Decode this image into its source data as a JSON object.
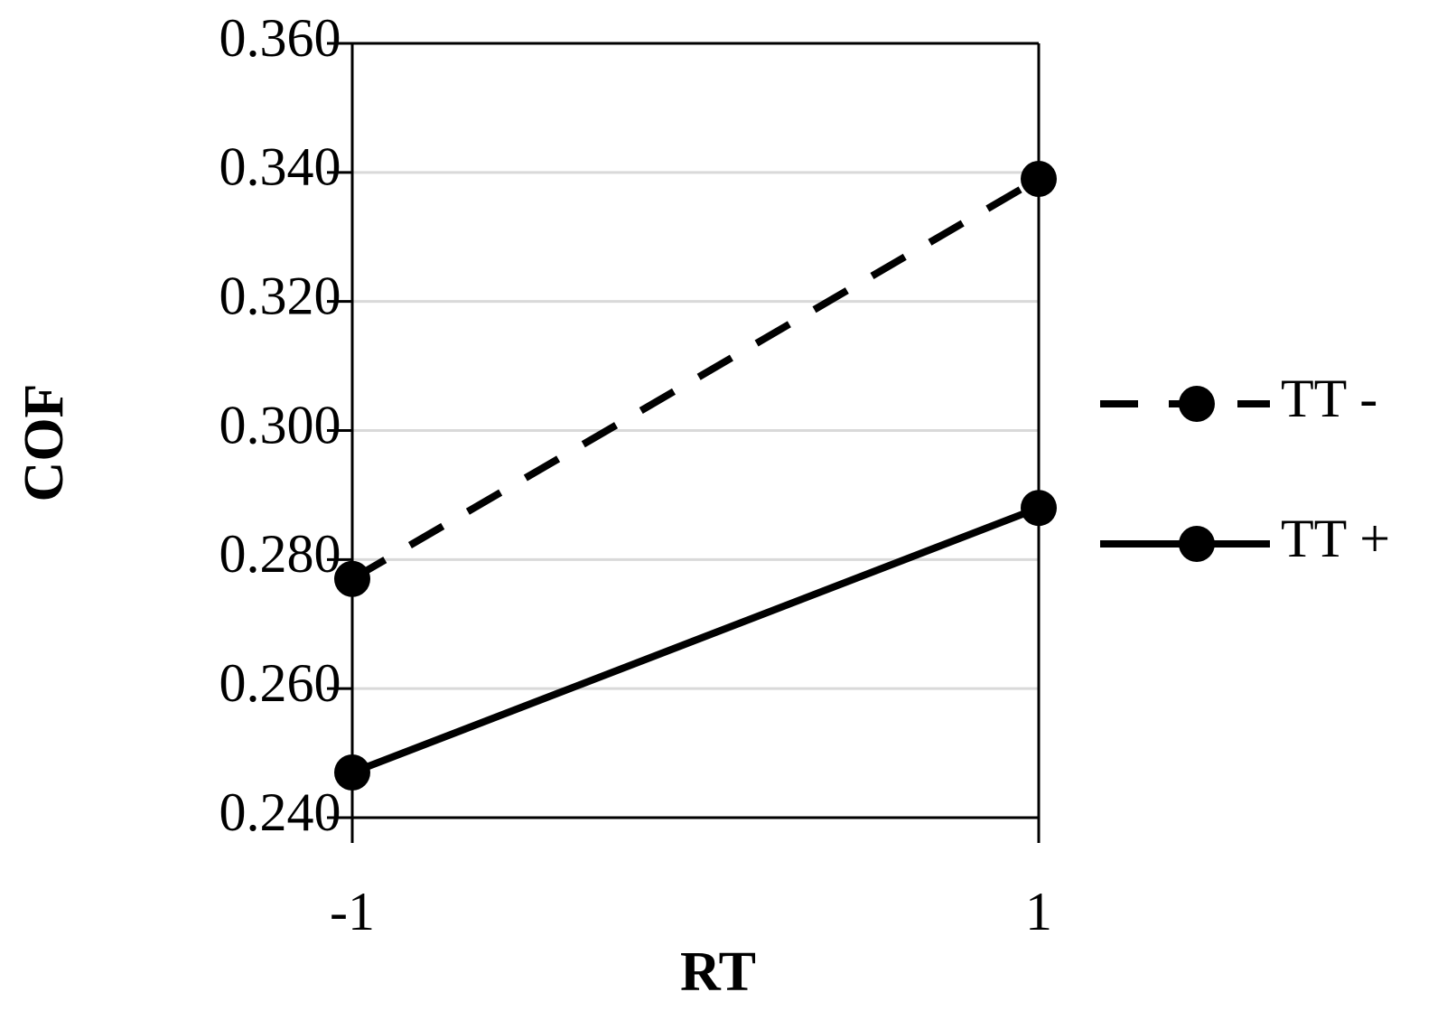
{
  "chart_data": {
    "type": "line",
    "x_label": "RT",
    "y_label": "COF",
    "x": [
      -1,
      1
    ],
    "xlim": [
      -1,
      1
    ],
    "xticks": [
      -1,
      1
    ],
    "ylim": [
      0.24,
      0.36
    ],
    "yticks": [
      {
        "value": 0.24,
        "label": "0.240"
      },
      {
        "value": 0.26,
        "label": "0.260"
      },
      {
        "value": 0.28,
        "label": "0.280"
      },
      {
        "value": 0.3,
        "label": "0.300"
      },
      {
        "value": 0.32,
        "label": "0.320"
      },
      {
        "value": 0.34,
        "label": "0.340"
      },
      {
        "value": 0.36,
        "label": "0.360"
      }
    ],
    "grid": true,
    "legend": "right",
    "series": [
      {
        "name": "TT -",
        "color": "#000000",
        "line_style": "dashed",
        "values": [
          0.277,
          0.339
        ]
      },
      {
        "name": "TT +",
        "color": "#000000",
        "line_style": "solid",
        "values": [
          0.247,
          0.288
        ]
      }
    ]
  }
}
